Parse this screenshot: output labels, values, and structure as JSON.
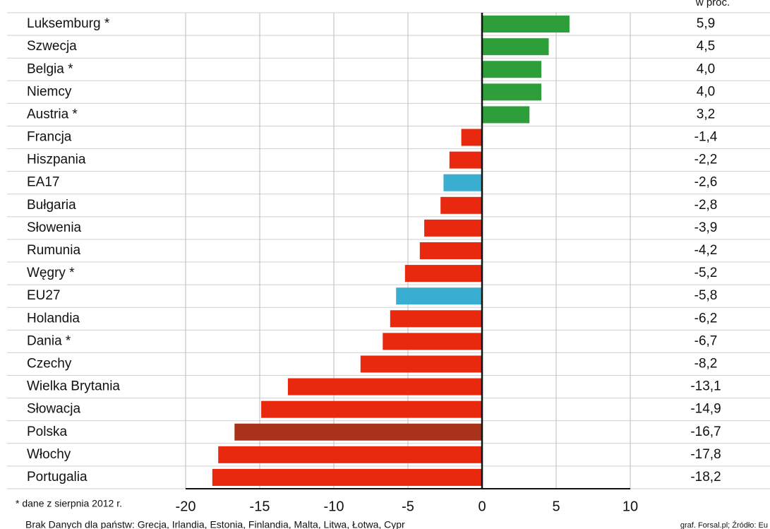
{
  "chart_data": {
    "type": "bar",
    "orientation": "horizontal",
    "unit_label": "w proc.",
    "categories": [
      "Luksemburg *",
      "Szwecja",
      "Belgia *",
      "Niemcy",
      "Austria *",
      "Francja",
      "Hiszpania",
      "EA17",
      "Bułgaria",
      "Słowenia",
      "Rumunia",
      "Węgry *",
      "EU27",
      "Holandia",
      "Dania *",
      "Czechy",
      "Wielka Brytania",
      "Słowacja",
      "Polska",
      "Włochy",
      "Portugalia"
    ],
    "values": [
      5.9,
      4.5,
      4.0,
      4.0,
      3.2,
      -1.4,
      -2.2,
      -2.6,
      -2.8,
      -3.9,
      -4.2,
      -5.2,
      -5.8,
      -6.2,
      -6.7,
      -8.2,
      -13.1,
      -14.9,
      -16.7,
      -17.8,
      -18.2
    ],
    "value_labels": [
      "5,9",
      "4,5",
      "4,0",
      "4,0",
      "3,2",
      "-1,4",
      "-2,2",
      "-2,6",
      "-2,8",
      "-3,9",
      "-4,2",
      "-5,2",
      "-5,8",
      "-6,2",
      "-6,7",
      "-8,2",
      "-13,1",
      "-14,9",
      "-16,7",
      "-17,8",
      "-18,2"
    ],
    "colors": [
      "#2e9e3a",
      "#2e9e3a",
      "#2e9e3a",
      "#2e9e3a",
      "#2e9e3a",
      "#e8280f",
      "#e8280f",
      "#3aaed0",
      "#e8280f",
      "#e8280f",
      "#e8280f",
      "#e8280f",
      "#3aaed0",
      "#e8280f",
      "#e8280f",
      "#e8280f",
      "#e8280f",
      "#e8280f",
      "#a8321a",
      "#e8280f",
      "#e8280f"
    ],
    "xlim": [
      -20,
      10
    ],
    "xticks": [
      -20,
      -15,
      -10,
      -5,
      0,
      5,
      10
    ],
    "grid": true,
    "footnote": "* dane z sierpnia 2012 r.",
    "note": "Brak Danych dla państw: Grecja, Irlandia, Estonia, Finlandia, Malta, Litwa, Łotwa, Cypr",
    "source": "graf. Forsal.pl; Źródło: Eu"
  }
}
